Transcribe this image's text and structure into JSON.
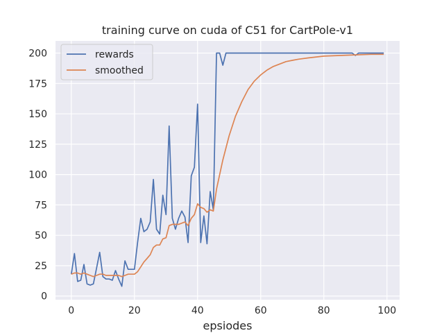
{
  "chart_data": {
    "type": "line",
    "title": "training curve on cuda of C51 for CartPole-v1",
    "xlabel": "epsiodes",
    "ylabel": "",
    "xlim": [
      -5,
      104
    ],
    "ylim": [
      -3,
      210
    ],
    "xticks": [
      0,
      20,
      40,
      60,
      80,
      100
    ],
    "yticks": [
      0,
      25,
      50,
      75,
      100,
      125,
      150,
      175,
      200
    ],
    "grid": true,
    "legend_position": "upper-left",
    "series": [
      {
        "name": "rewards",
        "color": "#4c72b0",
        "x": [
          0,
          1,
          2,
          3,
          4,
          5,
          6,
          7,
          8,
          9,
          10,
          11,
          12,
          13,
          14,
          15,
          16,
          17,
          18,
          19,
          20,
          21,
          22,
          23,
          24,
          25,
          26,
          27,
          28,
          29,
          30,
          31,
          32,
          33,
          34,
          35,
          36,
          37,
          38,
          39,
          40,
          41,
          42,
          43,
          44,
          45,
          46,
          47,
          48,
          49,
          50,
          55,
          60,
          65,
          70,
          75,
          80,
          85,
          89,
          90,
          91,
          92,
          95,
          99
        ],
        "y": [
          18,
          35,
          12,
          13,
          26,
          10,
          9,
          10,
          23,
          36,
          16,
          14,
          14,
          13,
          21,
          14,
          8,
          29,
          22,
          22,
          22,
          44,
          64,
          53,
          55,
          61,
          96,
          55,
          51,
          83,
          67,
          140,
          64,
          55,
          64,
          70,
          65,
          44,
          99,
          106,
          158,
          44,
          66,
          43,
          86,
          71,
          200,
          200,
          190,
          200,
          200,
          200,
          200,
          200,
          200,
          200,
          200,
          200,
          200,
          198,
          200,
          200,
          200,
          200
        ]
      },
      {
        "name": "smoothed",
        "color": "#dd8452",
        "x": [
          0,
          1,
          2,
          3,
          4,
          5,
          6,
          7,
          8,
          9,
          10,
          11,
          12,
          13,
          14,
          15,
          16,
          17,
          18,
          19,
          20,
          21,
          22,
          23,
          24,
          25,
          26,
          27,
          28,
          29,
          30,
          31,
          32,
          33,
          34,
          35,
          36,
          37,
          38,
          39,
          40,
          41,
          42,
          43,
          44,
          45,
          46,
          48,
          50,
          52,
          54,
          56,
          58,
          60,
          62,
          64,
          66,
          68,
          70,
          72,
          75,
          80,
          85,
          90,
          95,
          99
        ],
        "y": [
          18,
          19,
          19,
          18,
          19,
          18,
          17,
          16,
          17,
          18,
          18,
          17,
          17,
          17,
          17,
          17,
          16,
          17,
          18,
          18,
          18,
          20,
          24,
          28,
          31,
          34,
          40,
          42,
          42,
          47,
          48,
          58,
          59,
          59,
          59,
          60,
          61,
          58,
          64,
          67,
          76,
          73,
          72,
          69,
          71,
          70,
          88,
          112,
          132,
          148,
          160,
          170,
          177,
          182,
          186,
          189,
          191,
          193,
          194,
          195,
          196,
          197.5,
          198,
          198.5,
          199,
          199
        ]
      }
    ]
  }
}
